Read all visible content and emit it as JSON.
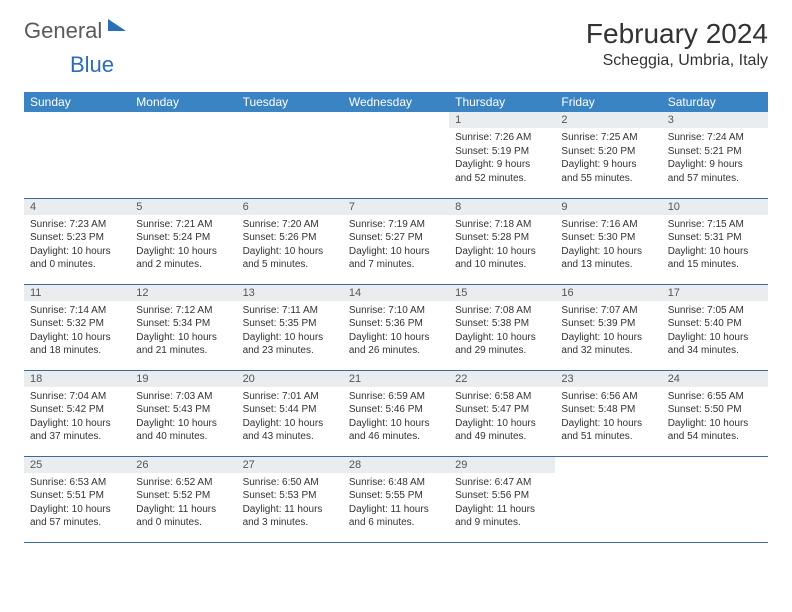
{
  "brand": {
    "word1": "General",
    "word2": "Blue"
  },
  "title": "February 2024",
  "location": "Scheggia, Umbria, Italy",
  "colors": {
    "header_bg": "#3b84c4",
    "header_text": "#ffffff",
    "daynum_bg": "#e9edf0",
    "row_border": "#3b6a9a",
    "brand_gray": "#5a5a5a",
    "brand_blue": "#2a6db8"
  },
  "day_names": [
    "Sunday",
    "Monday",
    "Tuesday",
    "Wednesday",
    "Thursday",
    "Friday",
    "Saturday"
  ],
  "weeks": [
    [
      {
        "num": "",
        "sunrise": "",
        "sunset": "",
        "daylight1": "",
        "daylight2": ""
      },
      {
        "num": "",
        "sunrise": "",
        "sunset": "",
        "daylight1": "",
        "daylight2": ""
      },
      {
        "num": "",
        "sunrise": "",
        "sunset": "",
        "daylight1": "",
        "daylight2": ""
      },
      {
        "num": "",
        "sunrise": "",
        "sunset": "",
        "daylight1": "",
        "daylight2": ""
      },
      {
        "num": "1",
        "sunrise": "Sunrise: 7:26 AM",
        "sunset": "Sunset: 5:19 PM",
        "daylight1": "Daylight: 9 hours",
        "daylight2": "and 52 minutes."
      },
      {
        "num": "2",
        "sunrise": "Sunrise: 7:25 AM",
        "sunset": "Sunset: 5:20 PM",
        "daylight1": "Daylight: 9 hours",
        "daylight2": "and 55 minutes."
      },
      {
        "num": "3",
        "sunrise": "Sunrise: 7:24 AM",
        "sunset": "Sunset: 5:21 PM",
        "daylight1": "Daylight: 9 hours",
        "daylight2": "and 57 minutes."
      }
    ],
    [
      {
        "num": "4",
        "sunrise": "Sunrise: 7:23 AM",
        "sunset": "Sunset: 5:23 PM",
        "daylight1": "Daylight: 10 hours",
        "daylight2": "and 0 minutes."
      },
      {
        "num": "5",
        "sunrise": "Sunrise: 7:21 AM",
        "sunset": "Sunset: 5:24 PM",
        "daylight1": "Daylight: 10 hours",
        "daylight2": "and 2 minutes."
      },
      {
        "num": "6",
        "sunrise": "Sunrise: 7:20 AM",
        "sunset": "Sunset: 5:26 PM",
        "daylight1": "Daylight: 10 hours",
        "daylight2": "and 5 minutes."
      },
      {
        "num": "7",
        "sunrise": "Sunrise: 7:19 AM",
        "sunset": "Sunset: 5:27 PM",
        "daylight1": "Daylight: 10 hours",
        "daylight2": "and 7 minutes."
      },
      {
        "num": "8",
        "sunrise": "Sunrise: 7:18 AM",
        "sunset": "Sunset: 5:28 PM",
        "daylight1": "Daylight: 10 hours",
        "daylight2": "and 10 minutes."
      },
      {
        "num": "9",
        "sunrise": "Sunrise: 7:16 AM",
        "sunset": "Sunset: 5:30 PM",
        "daylight1": "Daylight: 10 hours",
        "daylight2": "and 13 minutes."
      },
      {
        "num": "10",
        "sunrise": "Sunrise: 7:15 AM",
        "sunset": "Sunset: 5:31 PM",
        "daylight1": "Daylight: 10 hours",
        "daylight2": "and 15 minutes."
      }
    ],
    [
      {
        "num": "11",
        "sunrise": "Sunrise: 7:14 AM",
        "sunset": "Sunset: 5:32 PM",
        "daylight1": "Daylight: 10 hours",
        "daylight2": "and 18 minutes."
      },
      {
        "num": "12",
        "sunrise": "Sunrise: 7:12 AM",
        "sunset": "Sunset: 5:34 PM",
        "daylight1": "Daylight: 10 hours",
        "daylight2": "and 21 minutes."
      },
      {
        "num": "13",
        "sunrise": "Sunrise: 7:11 AM",
        "sunset": "Sunset: 5:35 PM",
        "daylight1": "Daylight: 10 hours",
        "daylight2": "and 23 minutes."
      },
      {
        "num": "14",
        "sunrise": "Sunrise: 7:10 AM",
        "sunset": "Sunset: 5:36 PM",
        "daylight1": "Daylight: 10 hours",
        "daylight2": "and 26 minutes."
      },
      {
        "num": "15",
        "sunrise": "Sunrise: 7:08 AM",
        "sunset": "Sunset: 5:38 PM",
        "daylight1": "Daylight: 10 hours",
        "daylight2": "and 29 minutes."
      },
      {
        "num": "16",
        "sunrise": "Sunrise: 7:07 AM",
        "sunset": "Sunset: 5:39 PM",
        "daylight1": "Daylight: 10 hours",
        "daylight2": "and 32 minutes."
      },
      {
        "num": "17",
        "sunrise": "Sunrise: 7:05 AM",
        "sunset": "Sunset: 5:40 PM",
        "daylight1": "Daylight: 10 hours",
        "daylight2": "and 34 minutes."
      }
    ],
    [
      {
        "num": "18",
        "sunrise": "Sunrise: 7:04 AM",
        "sunset": "Sunset: 5:42 PM",
        "daylight1": "Daylight: 10 hours",
        "daylight2": "and 37 minutes."
      },
      {
        "num": "19",
        "sunrise": "Sunrise: 7:03 AM",
        "sunset": "Sunset: 5:43 PM",
        "daylight1": "Daylight: 10 hours",
        "daylight2": "and 40 minutes."
      },
      {
        "num": "20",
        "sunrise": "Sunrise: 7:01 AM",
        "sunset": "Sunset: 5:44 PM",
        "daylight1": "Daylight: 10 hours",
        "daylight2": "and 43 minutes."
      },
      {
        "num": "21",
        "sunrise": "Sunrise: 6:59 AM",
        "sunset": "Sunset: 5:46 PM",
        "daylight1": "Daylight: 10 hours",
        "daylight2": "and 46 minutes."
      },
      {
        "num": "22",
        "sunrise": "Sunrise: 6:58 AM",
        "sunset": "Sunset: 5:47 PM",
        "daylight1": "Daylight: 10 hours",
        "daylight2": "and 49 minutes."
      },
      {
        "num": "23",
        "sunrise": "Sunrise: 6:56 AM",
        "sunset": "Sunset: 5:48 PM",
        "daylight1": "Daylight: 10 hours",
        "daylight2": "and 51 minutes."
      },
      {
        "num": "24",
        "sunrise": "Sunrise: 6:55 AM",
        "sunset": "Sunset: 5:50 PM",
        "daylight1": "Daylight: 10 hours",
        "daylight2": "and 54 minutes."
      }
    ],
    [
      {
        "num": "25",
        "sunrise": "Sunrise: 6:53 AM",
        "sunset": "Sunset: 5:51 PM",
        "daylight1": "Daylight: 10 hours",
        "daylight2": "and 57 minutes."
      },
      {
        "num": "26",
        "sunrise": "Sunrise: 6:52 AM",
        "sunset": "Sunset: 5:52 PM",
        "daylight1": "Daylight: 11 hours",
        "daylight2": "and 0 minutes."
      },
      {
        "num": "27",
        "sunrise": "Sunrise: 6:50 AM",
        "sunset": "Sunset: 5:53 PM",
        "daylight1": "Daylight: 11 hours",
        "daylight2": "and 3 minutes."
      },
      {
        "num": "28",
        "sunrise": "Sunrise: 6:48 AM",
        "sunset": "Sunset: 5:55 PM",
        "daylight1": "Daylight: 11 hours",
        "daylight2": "and 6 minutes."
      },
      {
        "num": "29",
        "sunrise": "Sunrise: 6:47 AM",
        "sunset": "Sunset: 5:56 PM",
        "daylight1": "Daylight: 11 hours",
        "daylight2": "and 9 minutes."
      },
      {
        "num": "",
        "sunrise": "",
        "sunset": "",
        "daylight1": "",
        "daylight2": ""
      },
      {
        "num": "",
        "sunrise": "",
        "sunset": "",
        "daylight1": "",
        "daylight2": ""
      }
    ]
  ]
}
